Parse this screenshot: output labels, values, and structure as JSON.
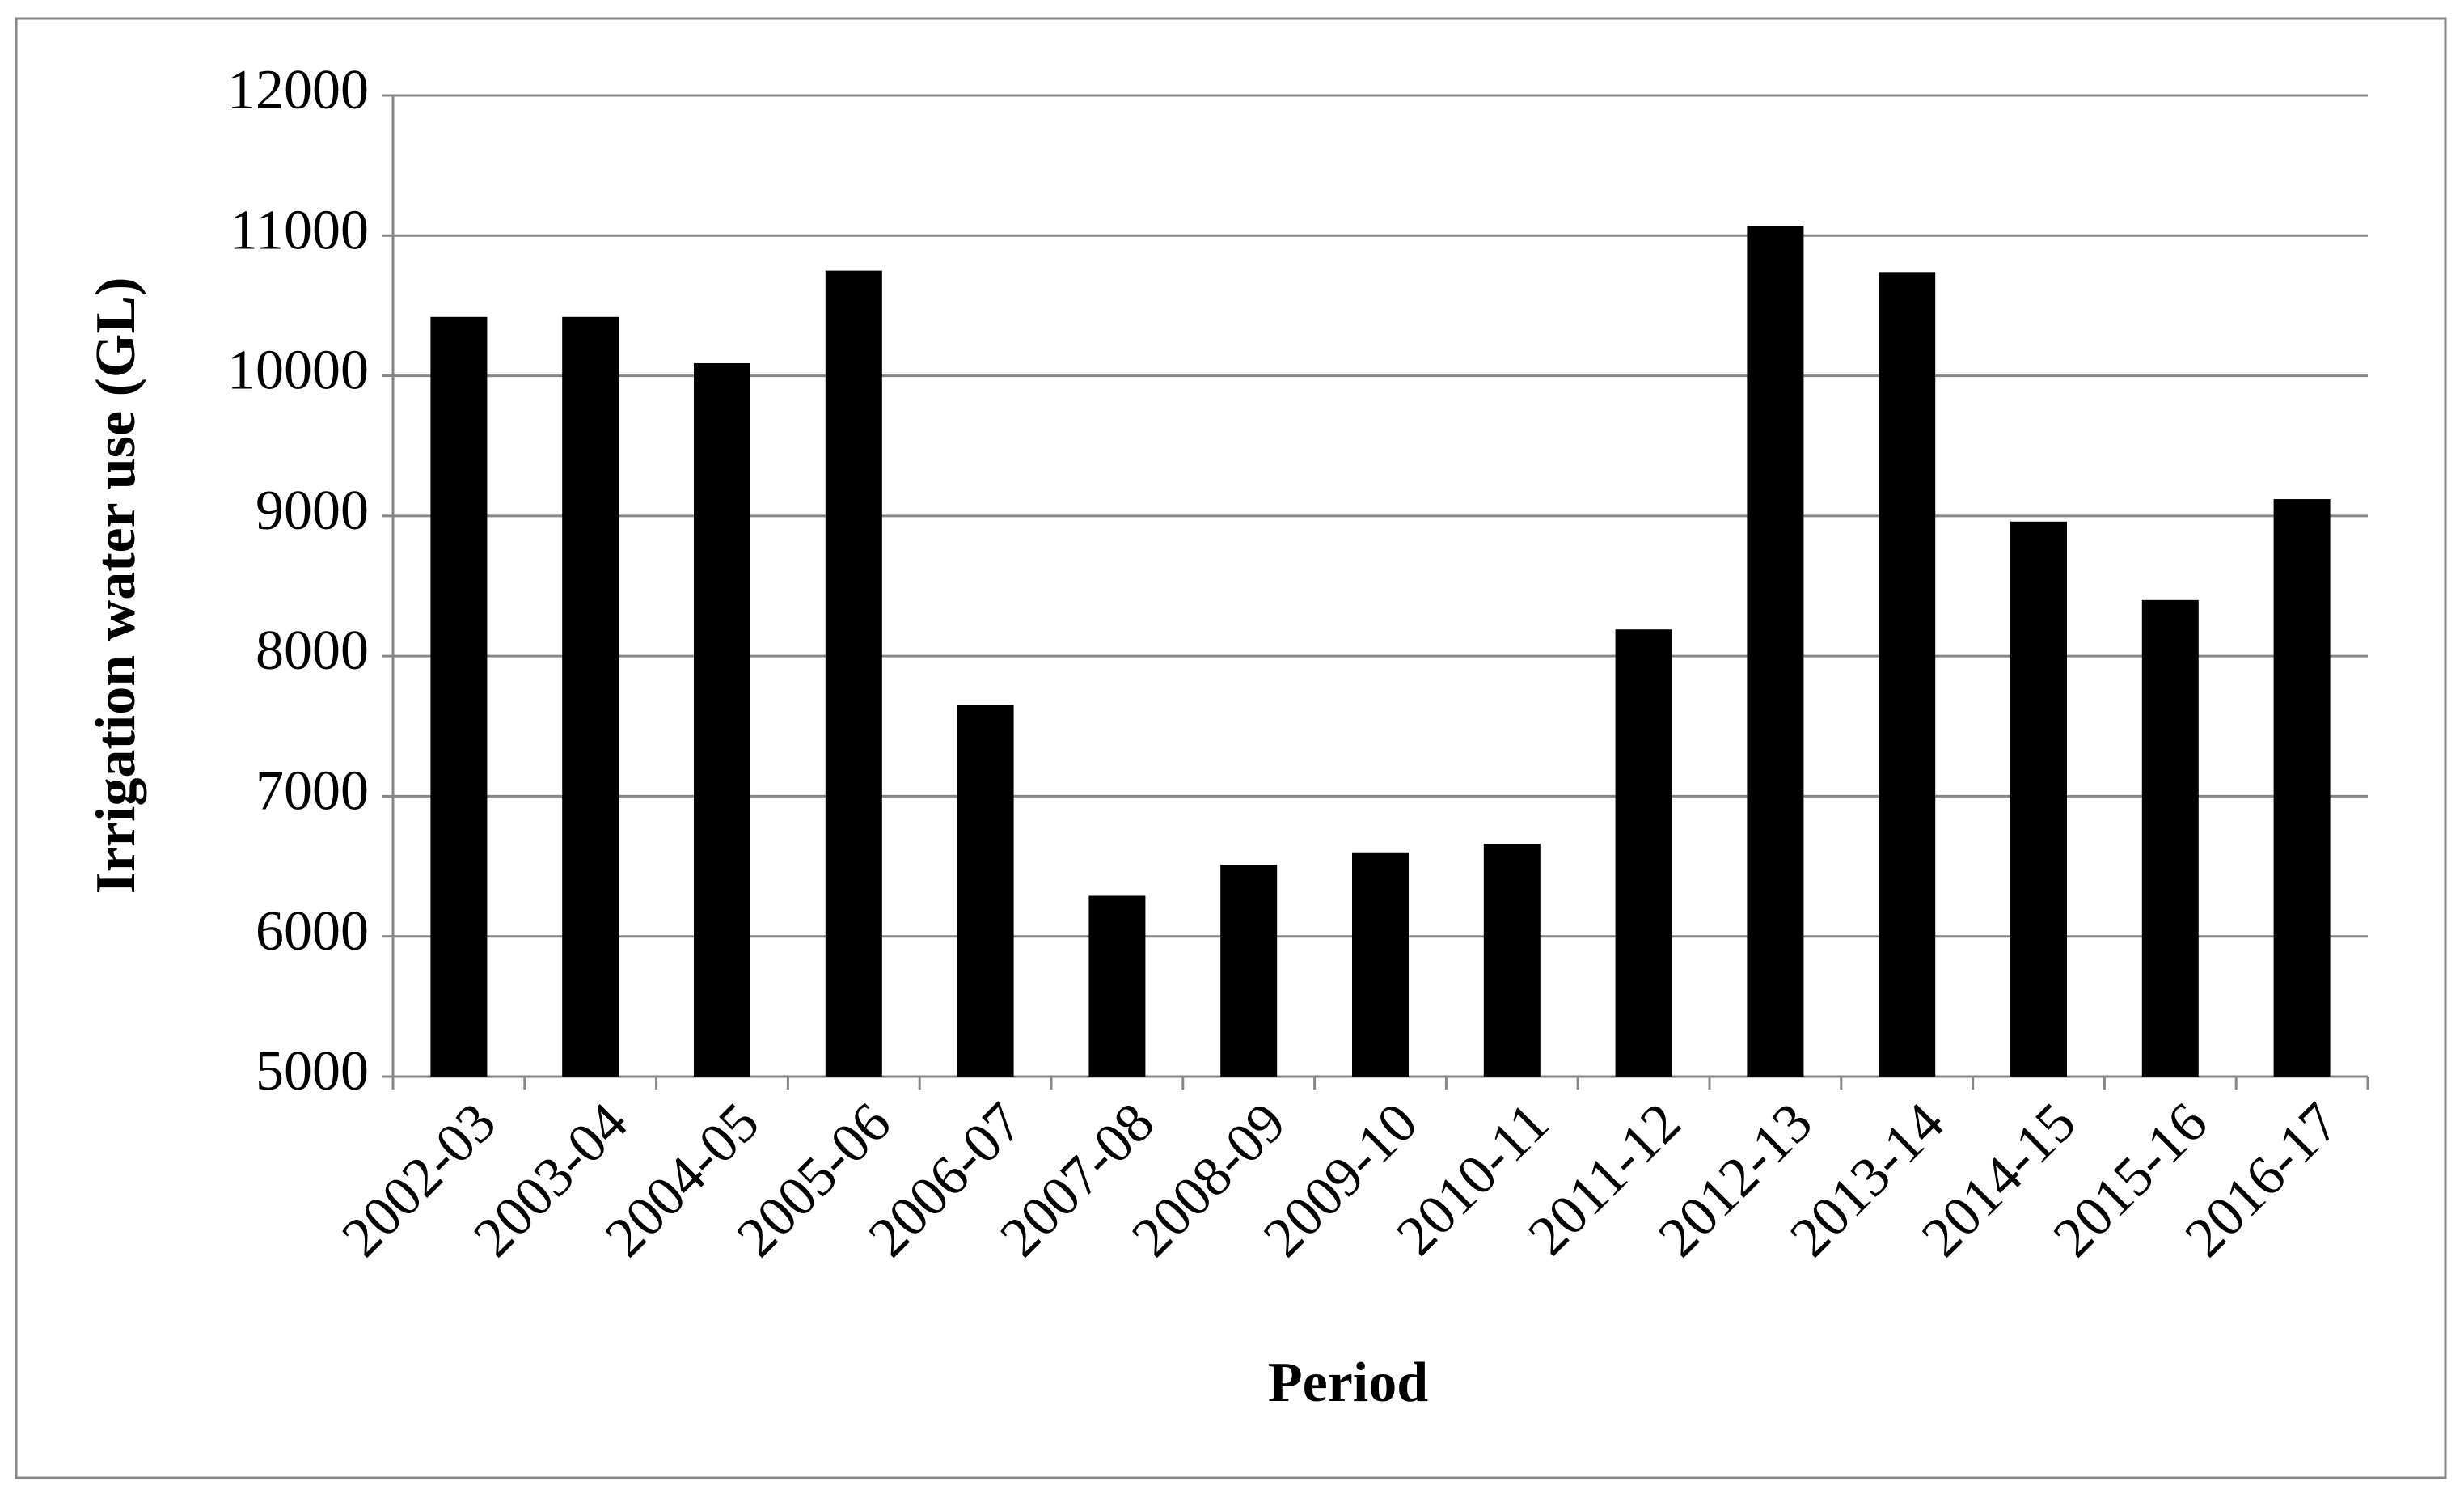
{
  "chart_data": {
    "type": "bar",
    "x_label": "Period",
    "y_label": "Irrigation water use (GL)",
    "categories": [
      "2002-03",
      "2003-04",
      "2004-05",
      "2005-06",
      "2006-07",
      "2007-08",
      "2008-09",
      "2009-10",
      "2010-11",
      "2011-12",
      "2012-13",
      "2013-14",
      "2014-15",
      "2015-16",
      "2016-17"
    ],
    "values": [
      10420,
      10420,
      10090,
      10750,
      7650,
      6290,
      6510,
      6600,
      6660,
      8190,
      11070,
      10740,
      8960,
      8400,
      9120
    ],
    "color": "#000000",
    "ylim": [
      5000,
      12000
    ],
    "yticks": [
      5000,
      6000,
      7000,
      8000,
      9000,
      10000,
      11000,
      12000
    ],
    "grid": true
  }
}
